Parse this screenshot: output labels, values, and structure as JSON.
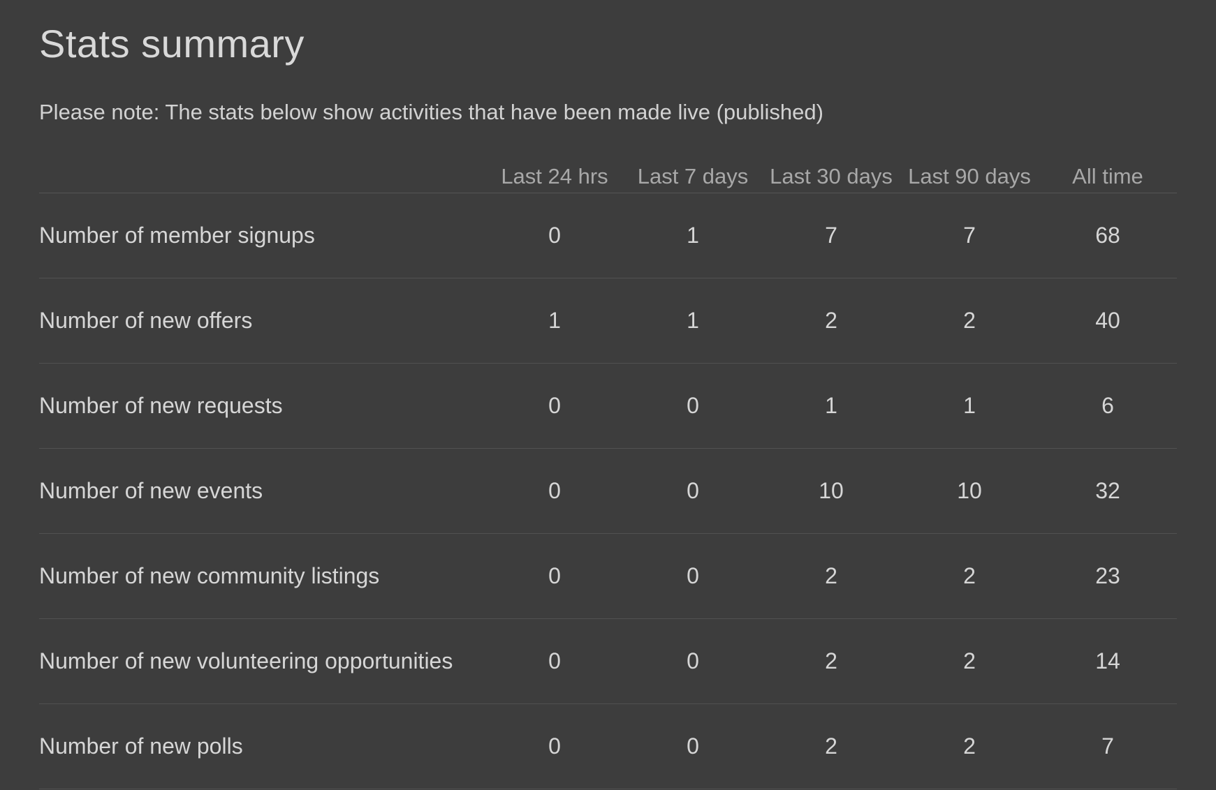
{
  "page": {
    "title": "Stats summary",
    "note": "Please note: The stats below show activities that have been made live (published)"
  },
  "table": {
    "columns": [
      "Last 24 hrs",
      "Last 7 days",
      "Last 30 days",
      "Last 90 days",
      "All time"
    ],
    "rows": [
      {
        "label": "Number of member signups",
        "values": [
          "0",
          "1",
          "7",
          "7",
          "68"
        ]
      },
      {
        "label": "Number of new offers",
        "values": [
          "1",
          "1",
          "2",
          "2",
          "40"
        ]
      },
      {
        "label": "Number of new requests",
        "values": [
          "0",
          "0",
          "1",
          "1",
          "6"
        ]
      },
      {
        "label": "Number of new events",
        "values": [
          "0",
          "0",
          "10",
          "10",
          "32"
        ]
      },
      {
        "label": "Number of new community listings",
        "values": [
          "0",
          "0",
          "2",
          "2",
          "23"
        ]
      },
      {
        "label": "Number of new volunteering opportunities",
        "values": [
          "0",
          "0",
          "2",
          "2",
          "14"
        ]
      },
      {
        "label": "Number of new polls",
        "values": [
          "0",
          "0",
          "2",
          "2",
          "7"
        ]
      }
    ]
  },
  "colors": {
    "background": "#3d3d3d",
    "title_text": "#d9d9d9",
    "body_text": "#d6d6d6",
    "header_text": "#a8a8a8",
    "divider": "#525252"
  }
}
